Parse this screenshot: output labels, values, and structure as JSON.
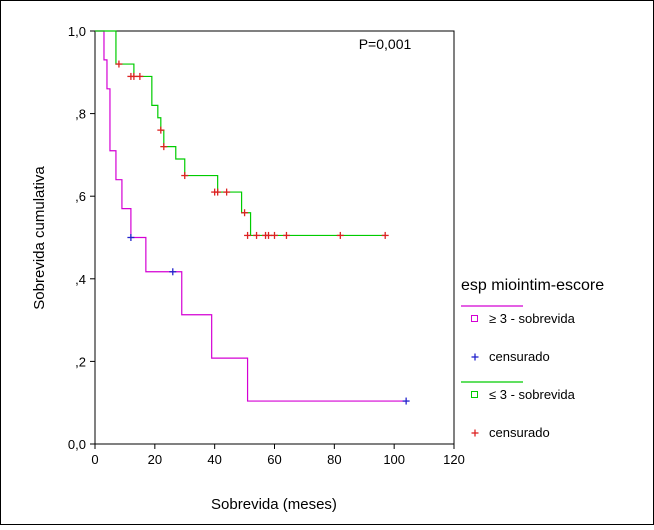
{
  "chart_data": {
    "type": "line",
    "title": "",
    "annotation": "P=0,001",
    "xlabel": "Sobrevida (meses)",
    "ylabel": "Sobrevida cumulativa",
    "xlim": [
      0,
      120
    ],
    "ylim": [
      0,
      1
    ],
    "xticks": [
      0,
      20,
      40,
      60,
      80,
      100,
      120
    ],
    "xtick_labels": [
      "0",
      "20",
      "40",
      "60",
      "80",
      "100",
      "120"
    ],
    "yticks": [
      0,
      0.2,
      0.4,
      0.6,
      0.8,
      1.0
    ],
    "ytick_labels": [
      "0,0",
      ",2",
      ",4",
      ",6",
      ",8",
      "1,0"
    ],
    "grid": false,
    "legend": {
      "title": "esp miointim-escore",
      "placement": "right",
      "entries": [
        {
          "label": "≥ 3 - sobrevida",
          "kind": "line",
          "color": "#d400d4"
        },
        {
          "label": "censurado",
          "kind": "censor",
          "color": "#2222cc"
        },
        {
          "label": "≤ 3 - sobrevida",
          "kind": "line",
          "color": "#00cc00"
        },
        {
          "label": "censurado",
          "kind": "censor",
          "color": "#dd2222"
        }
      ]
    },
    "series": [
      {
        "line_color": "#d400d4",
        "censor_color": "#2222cc",
        "steps": [
          [
            0,
            1.0
          ],
          [
            3,
            0.93
          ],
          [
            4,
            0.86
          ],
          [
            5,
            0.71
          ],
          [
            7,
            0.64
          ],
          [
            9,
            0.57
          ],
          [
            12,
            0.5
          ],
          [
            17,
            0.417
          ],
          [
            29,
            0.313
          ],
          [
            39,
            0.208
          ],
          [
            51,
            0.104
          ],
          [
            104,
            0.104
          ]
        ],
        "censored": [
          [
            12,
            0.5
          ],
          [
            26,
            0.417
          ],
          [
            104,
            0.104
          ]
        ]
      },
      {
        "line_color": "#00cc00",
        "censor_color": "#dd2222",
        "steps": [
          [
            0,
            1.0
          ],
          [
            6,
            1.0
          ],
          [
            7,
            0.92
          ],
          [
            12,
            0.92
          ],
          [
            13,
            0.89
          ],
          [
            17,
            0.89
          ],
          [
            19,
            0.82
          ],
          [
            21,
            0.79
          ],
          [
            22,
            0.76
          ],
          [
            23,
            0.72
          ],
          [
            27,
            0.69
          ],
          [
            30,
            0.65
          ],
          [
            40,
            0.65
          ],
          [
            41,
            0.61
          ],
          [
            47,
            0.61
          ],
          [
            49,
            0.56
          ],
          [
            51,
            0.56
          ],
          [
            52,
            0.505
          ],
          [
            97,
            0.505
          ]
        ],
        "censored": [
          [
            8,
            0.92
          ],
          [
            12,
            0.89
          ],
          [
            13,
            0.89
          ],
          [
            15,
            0.89
          ],
          [
            22,
            0.76
          ],
          [
            23,
            0.72
          ],
          [
            30,
            0.65
          ],
          [
            40,
            0.61
          ],
          [
            41,
            0.61
          ],
          [
            44,
            0.61
          ],
          [
            50,
            0.56
          ],
          [
            51,
            0.505
          ],
          [
            54,
            0.505
          ],
          [
            57,
            0.505
          ],
          [
            58,
            0.505
          ],
          [
            60,
            0.505
          ],
          [
            64,
            0.505
          ],
          [
            82,
            0.505
          ],
          [
            97,
            0.505
          ]
        ]
      }
    ]
  }
}
